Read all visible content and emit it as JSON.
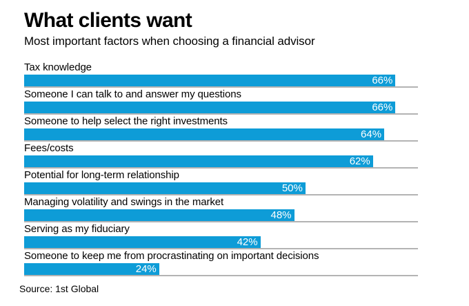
{
  "header": {
    "title": "What clients want",
    "subtitle": "Most important factors when choosing a financial advisor"
  },
  "source": "Source: 1st Global",
  "colors": {
    "bar": "#0e9cd7",
    "track_line": "#b3b3b3",
    "value_label": "#ffffff",
    "text": "#000000",
    "background": "#ffffff"
  },
  "chart_data": {
    "type": "bar",
    "orientation": "horizontal",
    "title": "What clients want",
    "subtitle": "Most important factors when choosing a financial advisor",
    "xlabel": "",
    "ylabel": "",
    "xlim": [
      0,
      70
    ],
    "grid": false,
    "legend": false,
    "value_label_position": "inside-right",
    "categories": [
      "Tax knowledge",
      "Someone I can talk to and answer my questions",
      "Someone to help select the right investments",
      "Fees/costs",
      "Potential for long-term relationship",
      "Managing volatility and swings in the market",
      "Serving as my fiduciary",
      "Someone to keep me from procrastinating on important decisions"
    ],
    "values": [
      66,
      66,
      64,
      62,
      50,
      48,
      42,
      24
    ],
    "value_labels": [
      "66%",
      "66%",
      "64%",
      "62%",
      "50%",
      "48%",
      "42%",
      "24%"
    ]
  }
}
